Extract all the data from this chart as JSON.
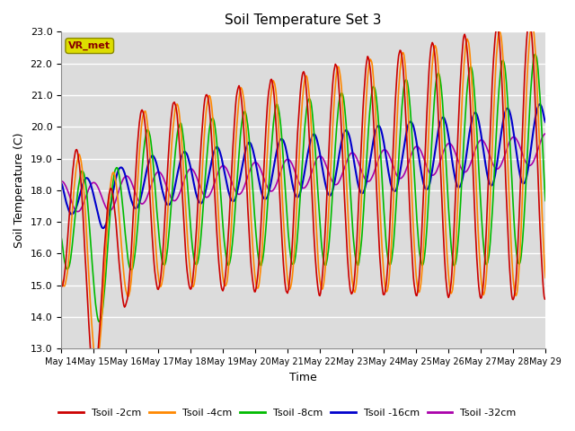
{
  "title": "Soil Temperature Set 3",
  "xlabel": "Time",
  "ylabel": "Soil Temperature (C)",
  "ylim": [
    13.0,
    23.0
  ],
  "yticks": [
    13.0,
    14.0,
    15.0,
    16.0,
    17.0,
    18.0,
    19.0,
    20.0,
    21.0,
    22.0,
    23.0
  ],
  "x_start_day": 14,
  "x_end_day": 29,
  "xtick_days": [
    14,
    15,
    16,
    17,
    18,
    19,
    20,
    21,
    22,
    23,
    24,
    25,
    26,
    27,
    28,
    29
  ],
  "colors": {
    "Tsoil -2cm": "#cc0000",
    "Tsoil -4cm": "#ff8800",
    "Tsoil -8cm": "#00bb00",
    "Tsoil -16cm": "#0000cc",
    "Tsoil -32cm": "#aa00aa"
  },
  "bg_color": "#dcdcdc",
  "legend_label": "VR_met",
  "legend_box_facecolor": "#dddd00",
  "legend_box_edgecolor": "#888800",
  "legend_text_color": "#880000"
}
